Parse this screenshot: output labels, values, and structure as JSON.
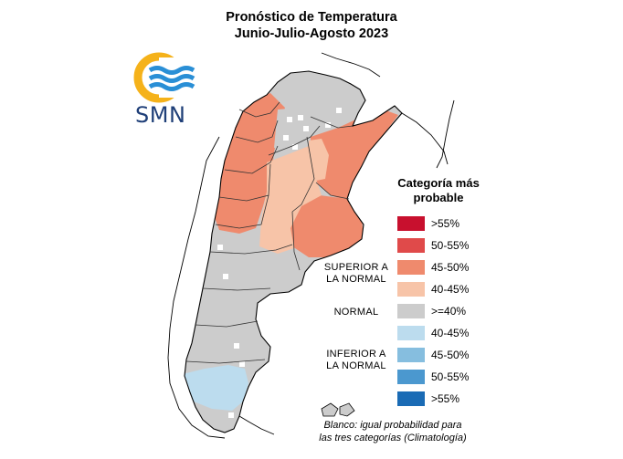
{
  "title": {
    "line1": "Pronóstico de Temperatura",
    "line2": "Junio-Julio-Agosto 2023"
  },
  "logo": {
    "text": "SMN",
    "ring_color": "#f5b21a",
    "wave_color": "#2a8fd6"
  },
  "legend": {
    "title_line1": "Categoría más",
    "title_line2": "probable",
    "items": [
      {
        "label": ">55%",
        "color": "#c8102e"
      },
      {
        "label": "50-55%",
        "color": "#e04a4a"
      },
      {
        "label": "45-50%",
        "color": "#ef8a6d"
      },
      {
        "label": "40-45%",
        "color": "#f7c4a8"
      },
      {
        "label": ">=40%",
        "color": "#cccccc"
      },
      {
        "label": "40-45%",
        "color": "#bcdcee"
      },
      {
        "label": "45-50%",
        "color": "#86bedf"
      },
      {
        "label": "50-55%",
        "color": "#4b98cf"
      },
      {
        "label": ">55%",
        "color": "#1a6bb5"
      }
    ],
    "groups": {
      "superior_line1": "SUPERIOR A",
      "superior_line2": "LA NORMAL",
      "normal": "NORMAL",
      "inferior_line1": "INFERIOR A",
      "inferior_line2": "LA NORMAL"
    }
  },
  "note": {
    "line1": "Blanco: igual probabilidad para",
    "line2": "las tres categorías (Climatología)"
  }
}
